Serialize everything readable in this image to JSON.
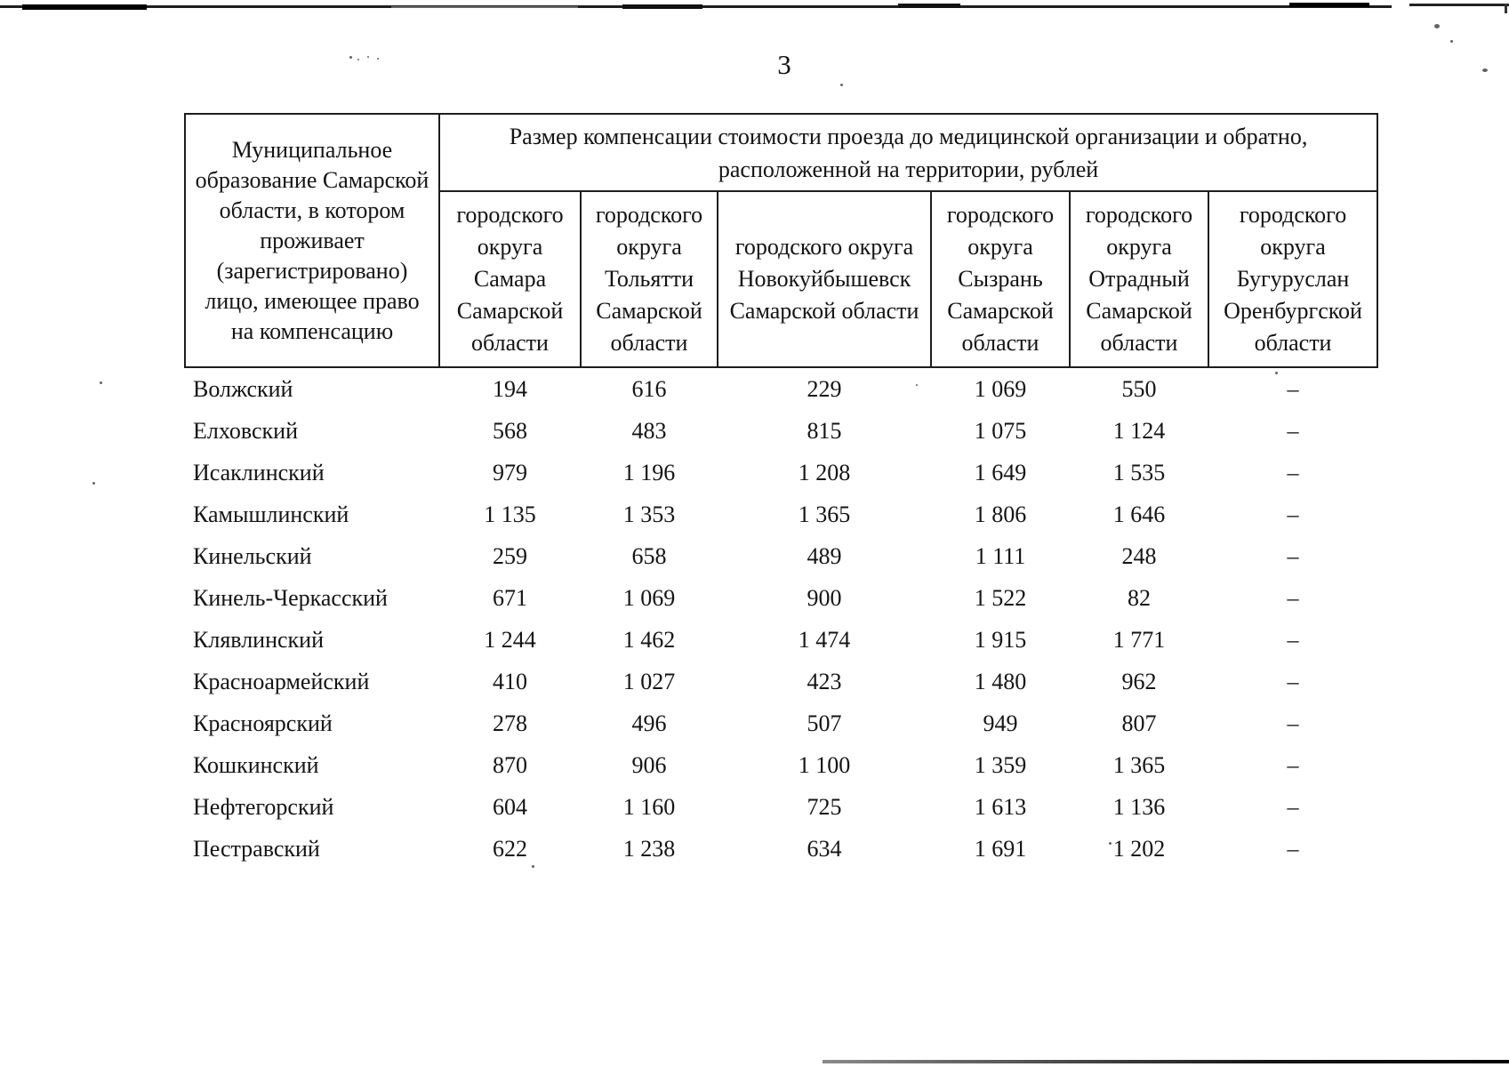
{
  "page_number": "3",
  "table": {
    "municipality_header": "Муниципальное образование Самарской области, в котором проживает (зарегистрировано) лицо, имеющее право на компенсацию",
    "main_header": "Размер компенсации стоимости проезда до медицинской организации и обратно, расположенной на территории, рублей",
    "columns": [
      "городского округа Самара Самарской области",
      "городского округа Тольятти Самарской области",
      "городского округа Новокуйбышевск Самарской области",
      "городского округа Сызрань Самарской области",
      "городского округа Отрадный Самарской области",
      "городского округа Бугуруслан Оренбургской области"
    ],
    "rows": [
      {
        "name": "Волжский",
        "values": [
          "194",
          "616",
          "229",
          "1 069",
          "550",
          "–"
        ]
      },
      {
        "name": "Елховский",
        "values": [
          "568",
          "483",
          "815",
          "1 075",
          "1 124",
          "–"
        ]
      },
      {
        "name": "Исаклинский",
        "values": [
          "979",
          "1 196",
          "1 208",
          "1 649",
          "1 535",
          "–"
        ]
      },
      {
        "name": "Камышлинский",
        "values": [
          "1 135",
          "1 353",
          "1 365",
          "1 806",
          "1 646",
          "–"
        ]
      },
      {
        "name": "Кинельский",
        "values": [
          "259",
          "658",
          "489",
          "1 111",
          "248",
          "–"
        ]
      },
      {
        "name": "Кинель-Черкасский",
        "values": [
          "671",
          "1 069",
          "900",
          "1 522",
          "82",
          "–"
        ]
      },
      {
        "name": "Клявлинский",
        "values": [
          "1 244",
          "1 462",
          "1 474",
          "1 915",
          "1 771",
          "–"
        ]
      },
      {
        "name": "Красноармейский",
        "values": [
          "410",
          "1 027",
          "423",
          "1 480",
          "962",
          "–"
        ]
      },
      {
        "name": "Красноярский",
        "values": [
          "278",
          "496",
          "507",
          "949",
          "807",
          "–"
        ]
      },
      {
        "name": "Кошкинский",
        "values": [
          "870",
          "906",
          "1 100",
          "1 359",
          "1 365",
          "–"
        ]
      },
      {
        "name": "Нефтегорский",
        "values": [
          "604",
          "1 160",
          "725",
          "1 613",
          "1 136",
          "–"
        ]
      },
      {
        "name": "Пестравский",
        "values": [
          "622",
          "1 238",
          "634",
          "1 691",
          "1 202",
          "–"
        ]
      }
    ]
  }
}
